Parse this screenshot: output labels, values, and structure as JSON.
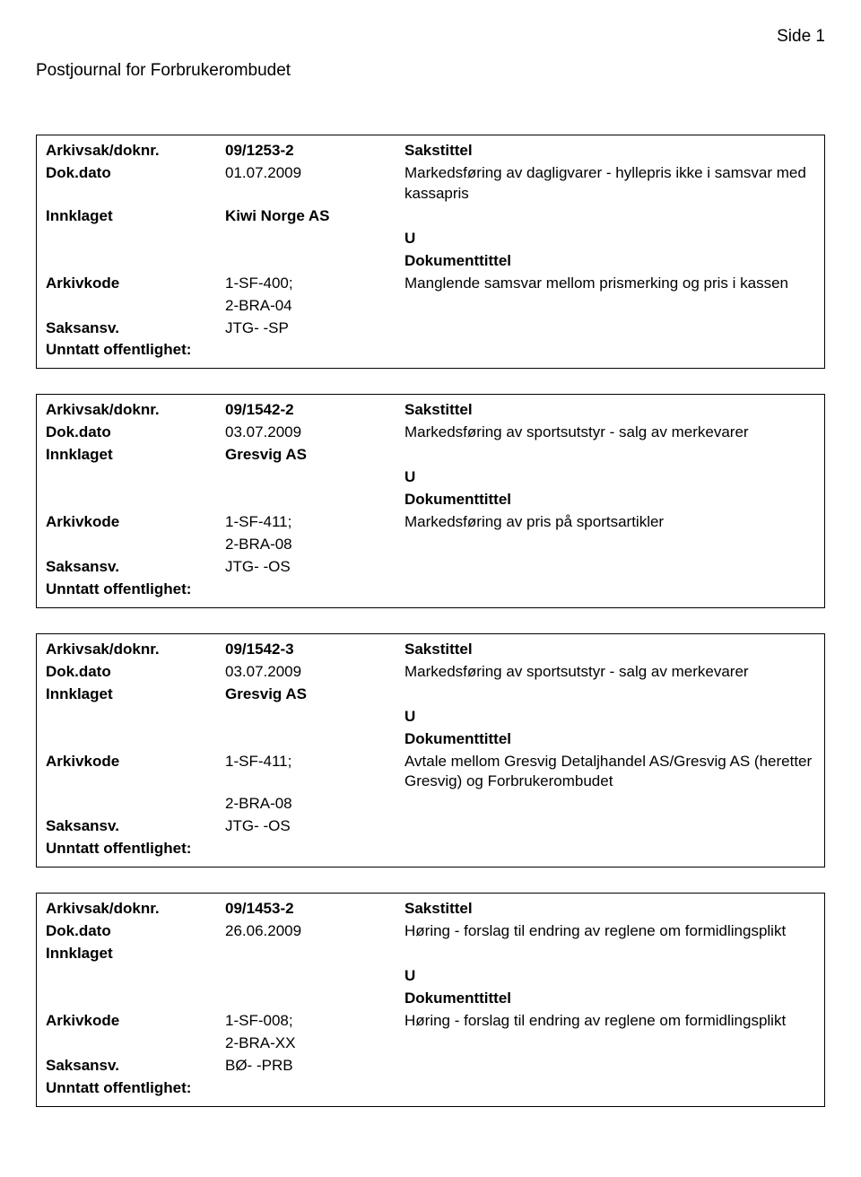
{
  "header": {
    "journal_title": "Postjournal for Forbrukerombudet",
    "page_label": "Side 1"
  },
  "labels": {
    "arkivsak": "Arkivsak/doknr.",
    "dokdato": "Dok.dato",
    "innklaget": "Innklaget",
    "arkivkode": "Arkivkode",
    "saksansv": "Saksansv.",
    "unntatt": "Unntatt offentlighet:",
    "sakstittel": "Sakstittel",
    "dokumenttittel": "Dokumenttittel"
  },
  "records": [
    {
      "arkivsak": "09/1253-2",
      "dokdato": "01.07.2009",
      "innklaget": "Kiwi Norge AS",
      "arkivkode1": "1-SF-400;",
      "arkivkode2": "2-BRA-04",
      "saksansv": "JTG- -SP",
      "sakstittel": "Markedsføring av dagligvarer - hyllepris ikke i samsvar med kassapris",
      "u": "U",
      "doktittel": "Manglende samsvar mellom prismerking og pris i kassen"
    },
    {
      "arkivsak": "09/1542-2",
      "dokdato": "03.07.2009",
      "innklaget": "Gresvig AS",
      "arkivkode1": "1-SF-411;",
      "arkivkode2": "2-BRA-08",
      "saksansv": "JTG- -OS",
      "sakstittel": "Markedsføring av sportsutstyr - salg av merkevarer",
      "u": "U",
      "doktittel": "Markedsføring av pris på sportsartikler"
    },
    {
      "arkivsak": "09/1542-3",
      "dokdato": "03.07.2009",
      "innklaget": "Gresvig AS",
      "arkivkode1": "1-SF-411;",
      "arkivkode2": "2-BRA-08",
      "saksansv": "JTG- -OS",
      "sakstittel": "Markedsføring av sportsutstyr - salg av merkevarer",
      "u": "U",
      "doktittel": "Avtale mellom Gresvig Detaljhandel AS/Gresvig AS (heretter Gresvig) og Forbrukerombudet"
    },
    {
      "arkivsak": "09/1453-2",
      "dokdato": "26.06.2009",
      "innklaget": "",
      "arkivkode1": "1-SF-008;",
      "arkivkode2": "2-BRA-XX",
      "saksansv": "BØ- -PRB",
      "sakstittel": "Høring - forslag til endring av reglene om formidlingsplikt",
      "u": "U",
      "doktittel": "Høring - forslag til endring av reglene om formidlingsplikt"
    }
  ]
}
